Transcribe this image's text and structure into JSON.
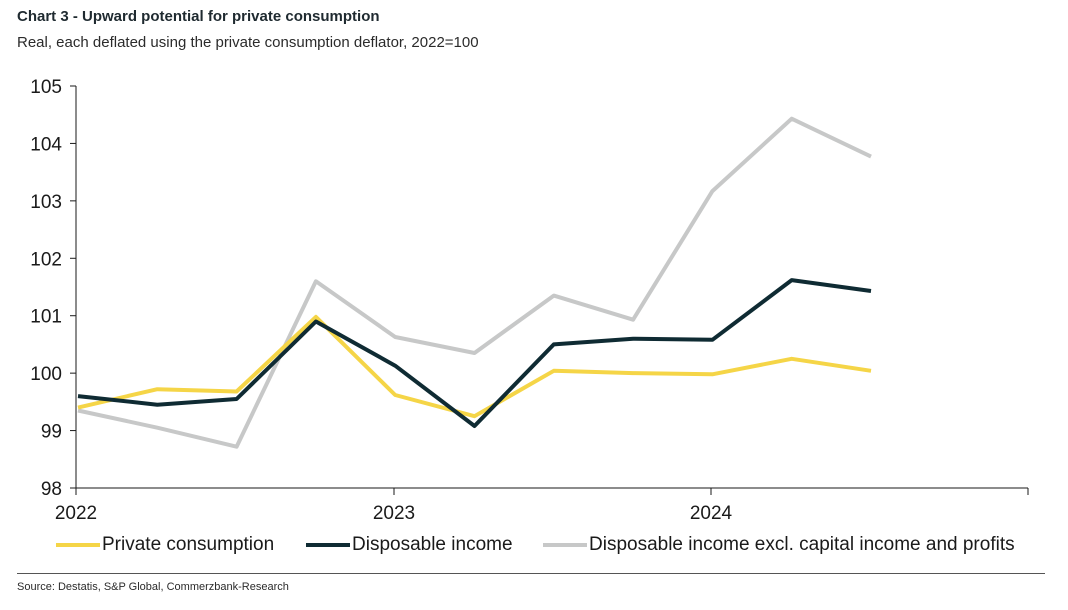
{
  "title": "Chart 3 - Upward potential for private consumption",
  "subtitle": "Real, each deflated using the private consumption deflator, 2022=100",
  "source": "Source: Destatis, S&P Global, Commerzbank-Research",
  "chart_data": {
    "type": "line",
    "x_tick_labels": [
      "2022",
      "2023",
      "2024"
    ],
    "y_ticks": [
      98,
      99,
      100,
      101,
      102,
      103,
      104,
      105
    ],
    "ylim": [
      98,
      105
    ],
    "grid": false,
    "legend_position": "bottom",
    "x": [
      "2021-Q4",
      "2022-Q1",
      "2022-Q2",
      "2022-Q3",
      "2022-Q4",
      "2023-Q1",
      "2023-Q2",
      "2023-Q3",
      "2023-Q4",
      "2024-Q1",
      "2024-Q2"
    ],
    "series": [
      {
        "name": "Private consumption",
        "color": "#f5d547",
        "values": [
          99.4,
          99.72,
          99.68,
          100.98,
          99.62,
          99.25,
          100.04,
          100.0,
          99.98,
          100.25,
          100.04
        ]
      },
      {
        "name": "Disposable income",
        "color": "#0f2b33",
        "values": [
          99.6,
          99.45,
          99.55,
          100.9,
          100.13,
          99.08,
          100.5,
          100.6,
          100.58,
          101.62,
          101.43
        ]
      },
      {
        "name": "Disposable income excl. capital income and profits",
        "color": "#c7c8c8",
        "values": [
          99.35,
          99.05,
          98.72,
          101.6,
          100.63,
          100.35,
          101.35,
          100.93,
          103.17,
          104.43,
          103.77
        ]
      }
    ]
  }
}
